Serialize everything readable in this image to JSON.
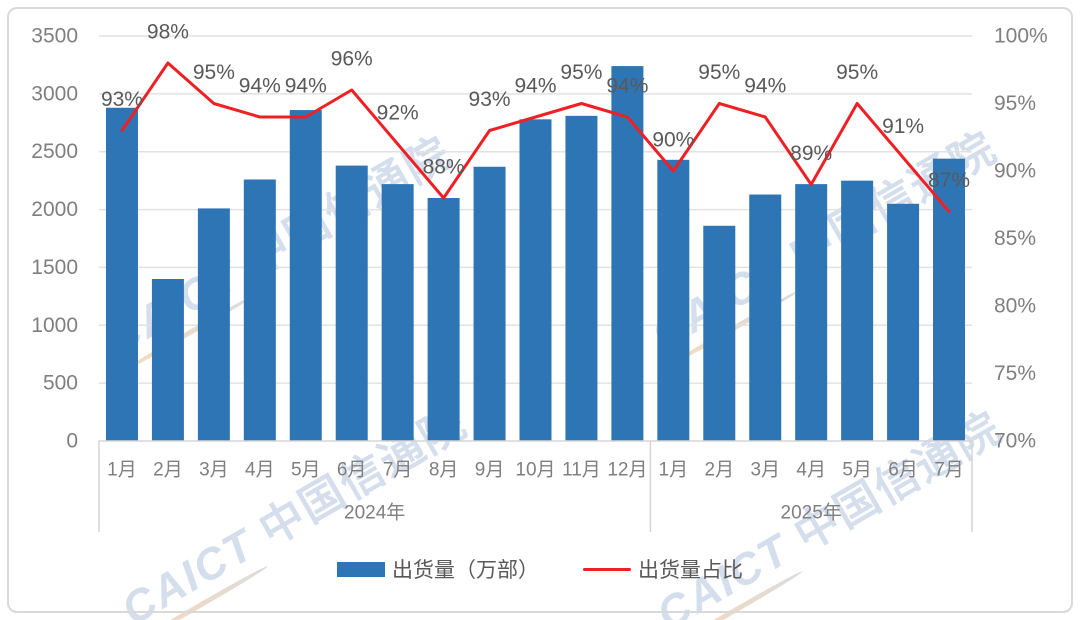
{
  "watermark": {
    "latin": "CAICT",
    "cjk": "中国信通院"
  },
  "colors": {
    "bar": "#2e75b6",
    "line": "#ee2024",
    "gridline": "#e2e2e2",
    "axis_line": "#d6d6d6",
    "tick_text": "#7f7f7f",
    "data_label_text": "#595959",
    "card_border": "#d9d9d9",
    "watermark_text": "rgba(125,155,198,0.33)"
  },
  "chart_data": {
    "type": "bar",
    "subtype": "bar+line dual axis",
    "categories": [
      "1月",
      "2月",
      "3月",
      "4月",
      "5月",
      "6月",
      "7月",
      "8月",
      "9月",
      "10月",
      "11月",
      "12月",
      "1月",
      "2月",
      "3月",
      "4月",
      "5月",
      "6月",
      "7月"
    ],
    "groups": [
      {
        "label": "2024年",
        "count": 12
      },
      {
        "label": "2025年",
        "count": 7
      }
    ],
    "series": [
      {
        "name": "出货量（万部）",
        "type": "bar",
        "axis": "left",
        "values": [
          2880,
          1400,
          2010,
          2260,
          2860,
          2380,
          2220,
          2100,
          2370,
          2780,
          2810,
          3240,
          2430,
          1860,
          2130,
          2220,
          2250,
          2050,
          2440
        ]
      },
      {
        "name": "出货量占比",
        "type": "line",
        "axis": "right",
        "values": [
          93,
          98,
          95,
          94,
          94,
          96,
          92,
          88,
          93,
          94,
          95,
          94,
          90,
          95,
          94,
          89,
          95,
          91,
          87
        ],
        "labels": [
          "93%",
          "98%",
          "95%",
          "94%",
          "94%",
          "96%",
          "92%",
          "88%",
          "93%",
          "94%",
          "95%",
          "94%",
          "90%",
          "95%",
          "94%",
          "89%",
          "95%",
          "91%",
          "87%"
        ]
      }
    ],
    "left_axis": {
      "min": 0,
      "max": 3500,
      "step": 500,
      "ticks": [
        "0",
        "500",
        "1000",
        "1500",
        "2000",
        "2500",
        "3000",
        "3500"
      ]
    },
    "right_axis": {
      "min": 70,
      "max": 100,
      "step": 5,
      "ticks": [
        "70%",
        "75%",
        "80%",
        "85%",
        "90%",
        "95%",
        "100%"
      ]
    },
    "title": "",
    "grid": true,
    "legend_position": "bottom"
  }
}
